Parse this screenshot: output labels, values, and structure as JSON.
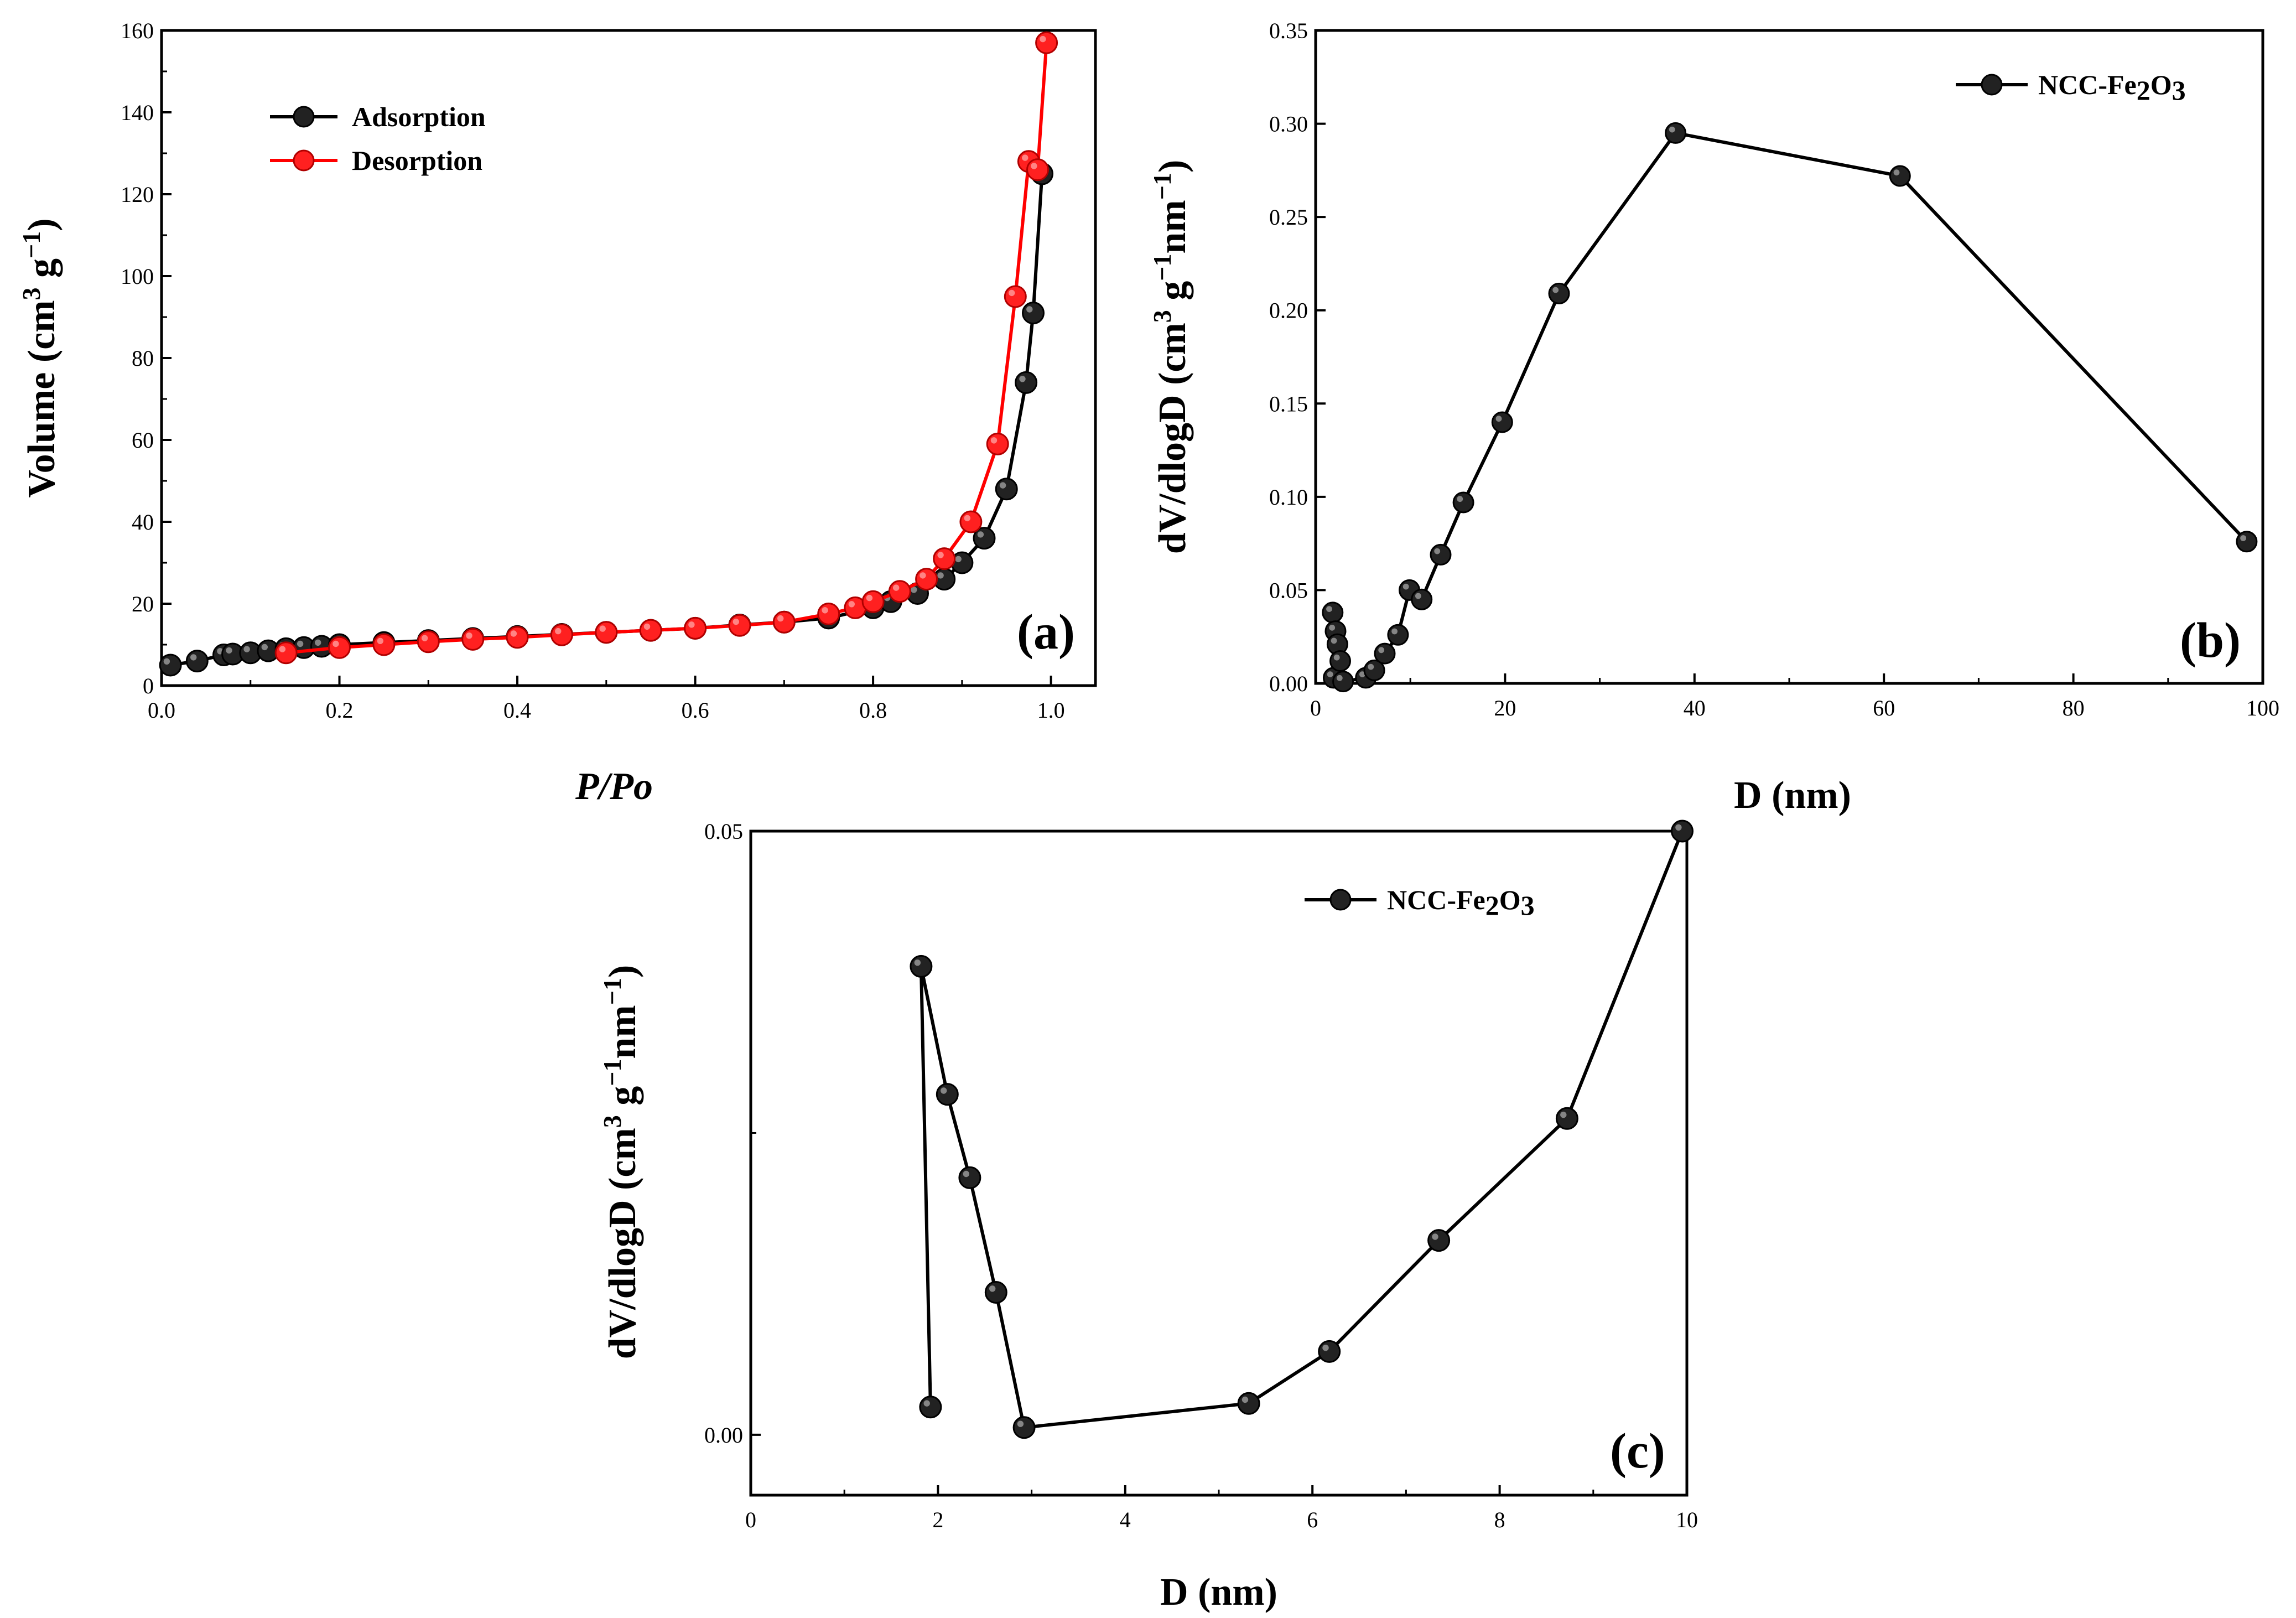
{
  "chart_data": [
    {
      "type": "line",
      "panel_label": "(a)",
      "xlabel": "P/Po",
      "ylabel": "Volume (cm",
      "ylabel_unit_sup": "3",
      "ylabel_unit_g": " g",
      "ylabel_unit_sup2": "−1",
      "ylabel_close": ")",
      "xlim": [
        0.0,
        1.05
      ],
      "ylim": [
        0,
        160
      ],
      "xticks": [
        "0.0",
        "0.2",
        "0.4",
        "0.6",
        "0.8",
        "1.0"
      ],
      "yticks": [
        "0",
        "20",
        "40",
        "60",
        "80",
        "100",
        "120",
        "140",
        "160"
      ],
      "legend_position": "top-left",
      "series": [
        {
          "name": "Adsorption",
          "color": "#000000",
          "x": [
            0.01,
            0.04,
            0.07,
            0.08,
            0.1,
            0.12,
            0.14,
            0.16,
            0.18,
            0.2,
            0.25,
            0.3,
            0.35,
            0.4,
            0.45,
            0.5,
            0.55,
            0.6,
            0.65,
            0.7,
            0.75,
            0.8,
            0.82,
            0.85,
            0.88,
            0.9,
            0.925,
            0.95,
            0.972,
            0.98,
            0.99
          ],
          "y": [
            5,
            6,
            7.5,
            7.7,
            8,
            8.5,
            9,
            9.3,
            9.6,
            10,
            10.5,
            11,
            11.5,
            12,
            12.5,
            13,
            13.5,
            14,
            14.8,
            15.5,
            16.5,
            19,
            20.5,
            22.5,
            26,
            30,
            36,
            48,
            74,
            91,
            125
          ]
        },
        {
          "name": "Desorption",
          "color": "#ff0000",
          "x": [
            0.14,
            0.2,
            0.25,
            0.3,
            0.35,
            0.4,
            0.45,
            0.5,
            0.55,
            0.6,
            0.65,
            0.7,
            0.75,
            0.78,
            0.8,
            0.83,
            0.86,
            0.88,
            0.91,
            0.94,
            0.96,
            0.975,
            0.985,
            0.995
          ],
          "y": [
            8,
            9.3,
            10,
            10.7,
            11.3,
            11.8,
            12.4,
            13,
            13.5,
            14,
            14.7,
            15.5,
            17.5,
            19,
            20.5,
            23,
            26,
            31,
            40,
            59,
            95,
            128,
            126,
            157
          ]
        }
      ]
    },
    {
      "type": "line",
      "panel_label": "(b)",
      "xlabel": "D (nm)",
      "ylabel": "dV/dlogD (cm",
      "ylabel_unit_sup": "3",
      "ylabel_unit_g": " g",
      "ylabel_unit_sup2": "−1",
      "ylabel_unit_nm": "nm",
      "ylabel_unit_sup3": "−1",
      "ylabel_close": ")",
      "xlim": [
        0,
        100
      ],
      "ylim": [
        0,
        0.35
      ],
      "xticks": [
        "0",
        "20",
        "40",
        "60",
        "80",
        "100"
      ],
      "yticks": [
        "0.00",
        "0.05",
        "0.10",
        "0.15",
        "0.20",
        "0.25",
        "0.30",
        "0.35"
      ],
      "legend_position": "top-right",
      "series": [
        {
          "name": "NCC-Fe",
          "name_sub1": "2",
          "name_mid": "O",
          "name_sub2": "3",
          "color": "#000000",
          "x": [
            1.8,
            1.9,
            2.1,
            2.3,
            2.6,
            2.9,
            5.3,
            6.2,
            7.3,
            8.7,
            9.9,
            11.2,
            13.2,
            15.6,
            19.7,
            25.7,
            38.0,
            61.7,
            98.3
          ],
          "y": [
            0.038,
            0.003,
            0.028,
            0.021,
            0.012,
            0.001,
            0.003,
            0.007,
            0.016,
            0.026,
            0.05,
            0.045,
            0.069,
            0.097,
            0.14,
            0.209,
            0.295,
            0.272,
            0.076
          ]
        }
      ]
    },
    {
      "type": "line",
      "panel_label": "(c)",
      "xlabel": "D (nm)",
      "ylabel": "dV/dlogD (cm",
      "ylabel_unit_sup": "3",
      "ylabel_unit_g": " g",
      "ylabel_unit_sup2": "−1",
      "ylabel_unit_nm": "nm",
      "ylabel_unit_sup3": "−1",
      "ylabel_close": ")",
      "xlim": [
        0,
        10
      ],
      "ylim": [
        -0.005,
        0.05
      ],
      "xticks": [
        "0",
        "2",
        "4",
        "6",
        "8",
        "10"
      ],
      "yticks": [
        "0.00",
        "0.05"
      ],
      "legend_position": "top-right",
      "series": [
        {
          "name": "NCC-Fe",
          "name_sub1": "2",
          "name_mid": "O",
          "name_sub2": "3",
          "color": "#000000",
          "x": [
            1.92,
            1.82,
            2.1,
            2.34,
            2.62,
            2.92,
            5.32,
            6.18,
            7.35,
            8.72,
            9.95
          ],
          "y": [
            0.0023,
            0.0388,
            0.0282,
            0.0213,
            0.0118,
            0.0006,
            0.0026,
            0.0069,
            0.0161,
            0.0262,
            0.05
          ]
        }
      ]
    }
  ]
}
